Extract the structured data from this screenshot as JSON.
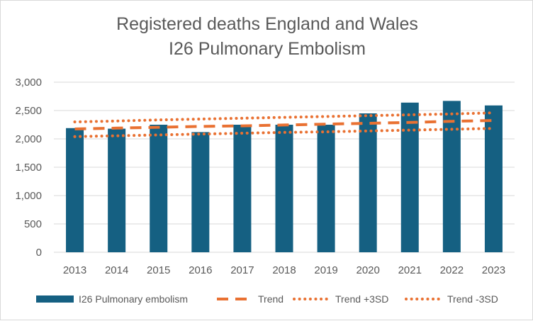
{
  "chart_data": {
    "type": "bar",
    "title_lines": [
      "Registered deaths England and Wales",
      "I26 Pulmonary Embolism"
    ],
    "categories": [
      "2013",
      "2014",
      "2015",
      "2016",
      "2017",
      "2018",
      "2019",
      "2020",
      "2021",
      "2022",
      "2023"
    ],
    "ylim": [
      0,
      3000
    ],
    "yticks": [
      0,
      500,
      1000,
      1500,
      2000,
      2500,
      3000
    ],
    "ytick_labels": [
      "0",
      "500",
      "1,000",
      "1,500",
      "2,000",
      "2,500",
      "3,000"
    ],
    "grid": true,
    "legend_position": "bottom",
    "series": [
      {
        "name": "I26 Pulmonary embolism",
        "kind": "bar",
        "color": "#156082",
        "values": [
          2190,
          2180,
          2250,
          2120,
          2250,
          2250,
          2250,
          2450,
          2640,
          2670,
          2590
        ]
      },
      {
        "name": "Trend",
        "kind": "line-dashed",
        "color": "#E97132",
        "values": [
          2175,
          2190,
          2205,
          2220,
          2230,
          2245,
          2260,
          2275,
          2290,
          2310,
          2325
        ]
      },
      {
        "name": "Trend +3SD",
        "kind": "line-dotted",
        "color": "#E97132",
        "values": [
          2300,
          2315,
          2335,
          2350,
          2365,
          2380,
          2395,
          2410,
          2425,
          2440,
          2460
        ]
      },
      {
        "name": "Trend -3SD",
        "kind": "line-dotted",
        "color": "#E97132",
        "values": [
          2040,
          2055,
          2070,
          2085,
          2100,
          2115,
          2125,
          2140,
          2155,
          2170,
          2185
        ]
      }
    ]
  }
}
